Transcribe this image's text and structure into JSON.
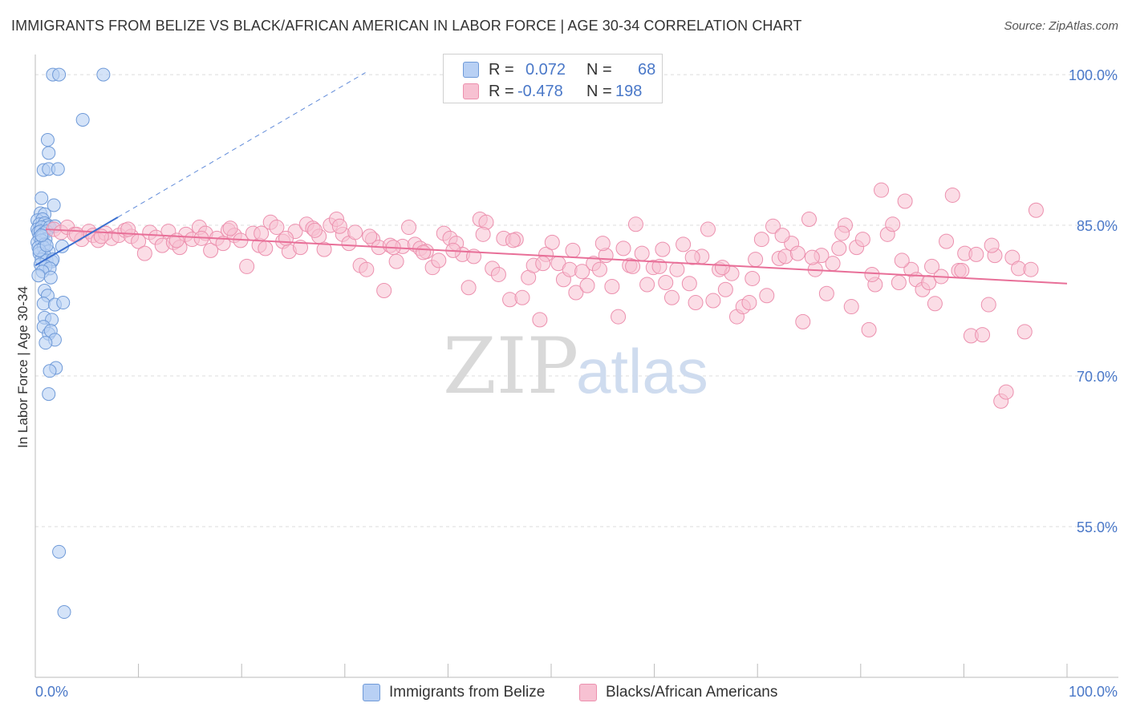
{
  "header": {
    "title": "IMMIGRANTS FROM BELIZE VS BLACK/AFRICAN AMERICAN IN LABOR FORCE | AGE 30-34 CORRELATION CHART",
    "source": "Source: ZipAtlas.com"
  },
  "watermark": {
    "zip": "ZIP",
    "atlas": "atlas"
  },
  "legend": {
    "rows": [
      {
        "r_label": "R =",
        "r_value": "0.072",
        "n_label": "N =",
        "n_value": "68"
      },
      {
        "r_label": "R =",
        "r_value": "-0.478",
        "n_label": "N =",
        "n_value": "198"
      }
    ]
  },
  "bottom_legend": {
    "items": [
      {
        "label": "Immigrants from Belize"
      },
      {
        "label": "Blacks/African Americans"
      }
    ]
  },
  "colors": {
    "blue_fill": "#b8d0f4",
    "blue_stroke": "#6f9ad8",
    "blue_line": "#3a6fd0",
    "pink_fill": "#f7c1d2",
    "pink_stroke": "#ec90ae",
    "pink_line": "#e86f98",
    "grid": "#dddddd",
    "tick_text": "#4a78c8"
  },
  "chart_data": {
    "type": "scatter",
    "title": "IMMIGRANTS FROM BELIZE VS BLACK/AFRICAN AMERICAN IN LABOR FORCE | AGE 30-34 CORRELATION CHART",
    "xlabel": "",
    "ylabel": "In Labor Force | Age 30-34",
    "xlim": [
      0,
      100
    ],
    "ylim": [
      40,
      102
    ],
    "x_tick_labels": [
      "0.0%",
      "100.0%"
    ],
    "y_ticks": [
      55,
      70,
      85,
      100
    ],
    "y_tick_labels": [
      "55.0%",
      "70.0%",
      "85.0%",
      "100.0%"
    ],
    "grid": true,
    "legend_position": "top-center",
    "series": [
      {
        "name": "Immigrants from Belize",
        "R": 0.072,
        "N": 68,
        "trend": {
          "x0": 0.0,
          "y0": 81.0,
          "x1": 8.0,
          "y1": 85.8,
          "dashed_to": {
            "x": 32.0,
            "y": 100.2
          }
        },
        "points": [
          [
            1.7,
            100.0
          ],
          [
            2.3,
            100.0
          ],
          [
            6.6,
            100.0
          ],
          [
            4.6,
            95.5
          ],
          [
            1.2,
            93.5
          ],
          [
            1.3,
            92.2
          ],
          [
            0.8,
            90.5
          ],
          [
            1.3,
            90.6
          ],
          [
            2.2,
            90.6
          ],
          [
            0.6,
            87.7
          ],
          [
            1.8,
            87.0
          ],
          [
            0.5,
            86.2
          ],
          [
            0.9,
            86.1
          ],
          [
            0.2,
            85.5
          ],
          [
            0.7,
            85.6
          ],
          [
            0.4,
            85.1
          ],
          [
            0.9,
            85.2
          ],
          [
            1.2,
            85.0
          ],
          [
            0.2,
            84.6
          ],
          [
            0.6,
            84.8
          ],
          [
            1.4,
            84.8
          ],
          [
            0.3,
            84.3
          ],
          [
            0.5,
            84.4
          ],
          [
            0.8,
            84.2
          ],
          [
            1.1,
            84.4
          ],
          [
            0.4,
            83.8
          ],
          [
            0.7,
            83.9
          ],
          [
            1.0,
            83.6
          ],
          [
            0.2,
            83.3
          ],
          [
            0.6,
            83.5
          ],
          [
            0.9,
            83.1
          ],
          [
            0.3,
            82.8
          ],
          [
            0.8,
            82.8
          ],
          [
            2.6,
            82.9
          ],
          [
            1.3,
            82.4
          ],
          [
            0.4,
            82.2
          ],
          [
            0.9,
            82.0
          ],
          [
            0.6,
            81.6
          ],
          [
            1.1,
            81.5
          ],
          [
            1.6,
            81.4
          ],
          [
            1.7,
            81.6
          ],
          [
            0.5,
            81.1
          ],
          [
            1.0,
            80.9
          ],
          [
            1.4,
            80.7
          ],
          [
            0.7,
            80.4
          ],
          [
            0.3,
            80.0
          ],
          [
            1.5,
            79.8
          ],
          [
            0.9,
            78.5
          ],
          [
            1.2,
            78.0
          ],
          [
            0.8,
            77.2
          ],
          [
            1.9,
            77.1
          ],
          [
            2.7,
            77.3
          ],
          [
            0.9,
            75.8
          ],
          [
            1.6,
            75.6
          ],
          [
            0.8,
            74.9
          ],
          [
            1.3,
            74.2
          ],
          [
            1.5,
            74.5
          ],
          [
            1.9,
            73.6
          ],
          [
            1.0,
            73.3
          ],
          [
            2.0,
            70.8
          ],
          [
            1.4,
            70.5
          ],
          [
            1.3,
            68.2
          ],
          [
            2.3,
            52.5
          ],
          [
            2.8,
            46.5
          ],
          [
            0.4,
            82.5
          ],
          [
            1.1,
            83.0
          ],
          [
            0.6,
            84.0
          ],
          [
            1.9,
            84.9
          ]
        ]
      },
      {
        "name": "Blacks/African Americans",
        "R": -0.478,
        "N": 198,
        "trend": {
          "x0": 1.0,
          "y0": 84.6,
          "x1": 100.0,
          "y1": 79.2
        },
        "points": [
          [
            1.8,
            84.6
          ],
          [
            2.5,
            84.3
          ],
          [
            3.1,
            84.8
          ],
          [
            3.8,
            84.1
          ],
          [
            4.5,
            83.6
          ],
          [
            5.2,
            84.4
          ],
          [
            5.6,
            84.0
          ],
          [
            6.1,
            83.5
          ],
          [
            6.8,
            84.2
          ],
          [
            7.4,
            83.7
          ],
          [
            8.1,
            84.0
          ],
          [
            8.7,
            84.5
          ],
          [
            9.3,
            83.9
          ],
          [
            10.0,
            83.4
          ],
          [
            10.6,
            82.2
          ],
          [
            11.1,
            84.3
          ],
          [
            11.7,
            83.8
          ],
          [
            12.3,
            83.0
          ],
          [
            12.9,
            84.4
          ],
          [
            13.4,
            83.3
          ],
          [
            14.0,
            82.8
          ],
          [
            14.6,
            84.1
          ],
          [
            15.2,
            83.6
          ],
          [
            15.9,
            84.8
          ],
          [
            16.5,
            84.2
          ],
          [
            17.0,
            82.5
          ],
          [
            17.6,
            83.7
          ],
          [
            18.2,
            83.2
          ],
          [
            18.7,
            84.5
          ],
          [
            19.3,
            84.0
          ],
          [
            19.9,
            83.5
          ],
          [
            20.5,
            80.9
          ],
          [
            21.1,
            84.2
          ],
          [
            21.7,
            83.0
          ],
          [
            22.3,
            82.7
          ],
          [
            22.8,
            85.3
          ],
          [
            23.4,
            84.8
          ],
          [
            24.0,
            83.4
          ],
          [
            24.6,
            82.4
          ],
          [
            25.2,
            84.4
          ],
          [
            25.7,
            82.8
          ],
          [
            26.3,
            85.1
          ],
          [
            26.9,
            84.7
          ],
          [
            27.5,
            83.9
          ],
          [
            28.0,
            82.6
          ],
          [
            28.6,
            85.0
          ],
          [
            29.2,
            85.6
          ],
          [
            29.8,
            84.1
          ],
          [
            30.4,
            83.2
          ],
          [
            31.0,
            84.3
          ],
          [
            31.5,
            81.0
          ],
          [
            32.1,
            80.6
          ],
          [
            32.7,
            83.6
          ],
          [
            33.3,
            82.8
          ],
          [
            33.8,
            78.5
          ],
          [
            34.4,
            83.0
          ],
          [
            35.0,
            81.4
          ],
          [
            35.6,
            82.9
          ],
          [
            36.2,
            84.8
          ],
          [
            36.8,
            83.1
          ],
          [
            37.3,
            82.7
          ],
          [
            37.9,
            82.4
          ],
          [
            38.5,
            80.8
          ],
          [
            39.1,
            81.5
          ],
          [
            39.6,
            84.2
          ],
          [
            40.2,
            83.7
          ],
          [
            40.8,
            83.2
          ],
          [
            41.4,
            82.1
          ],
          [
            42.0,
            78.8
          ],
          [
            42.5,
            81.9
          ],
          [
            43.1,
            85.6
          ],
          [
            43.7,
            85.3
          ],
          [
            44.3,
            80.7
          ],
          [
            44.9,
            80.1
          ],
          [
            45.4,
            83.7
          ],
          [
            46.0,
            77.6
          ],
          [
            46.6,
            83.6
          ],
          [
            47.2,
            77.8
          ],
          [
            47.8,
            79.8
          ],
          [
            48.3,
            81.0
          ],
          [
            48.9,
            75.6
          ],
          [
            49.5,
            82.1
          ],
          [
            50.1,
            83.3
          ],
          [
            50.7,
            81.2
          ],
          [
            51.2,
            79.6
          ],
          [
            51.8,
            80.6
          ],
          [
            52.4,
            78.3
          ],
          [
            53.0,
            80.4
          ],
          [
            53.5,
            79.0
          ],
          [
            54.1,
            81.2
          ],
          [
            54.7,
            80.6
          ],
          [
            55.3,
            82.0
          ],
          [
            55.9,
            78.9
          ],
          [
            56.5,
            75.9
          ],
          [
            57.0,
            82.7
          ],
          [
            57.6,
            81.0
          ],
          [
            58.2,
            85.1
          ],
          [
            58.8,
            82.2
          ],
          [
            59.3,
            79.1
          ],
          [
            59.9,
            80.8
          ],
          [
            60.5,
            80.9
          ],
          [
            61.1,
            79.3
          ],
          [
            61.7,
            77.8
          ],
          [
            62.2,
            80.6
          ],
          [
            62.8,
            83.1
          ],
          [
            63.4,
            79.2
          ],
          [
            64.0,
            77.3
          ],
          [
            64.6,
            81.9
          ],
          [
            65.2,
            84.6
          ],
          [
            65.7,
            77.5
          ],
          [
            66.3,
            80.6
          ],
          [
            66.9,
            78.6
          ],
          [
            67.5,
            80.2
          ],
          [
            68.0,
            75.9
          ],
          [
            68.6,
            76.9
          ],
          [
            69.2,
            77.3
          ],
          [
            69.8,
            81.6
          ],
          [
            70.4,
            83.6
          ],
          [
            70.9,
            78.0
          ],
          [
            71.5,
            84.9
          ],
          [
            72.1,
            81.7
          ],
          [
            72.7,
            81.9
          ],
          [
            73.3,
            83.2
          ],
          [
            73.9,
            82.2
          ],
          [
            74.4,
            75.4
          ],
          [
            75.0,
            85.6
          ],
          [
            75.6,
            80.6
          ],
          [
            76.2,
            82.0
          ],
          [
            76.7,
            78.2
          ],
          [
            77.3,
            81.2
          ],
          [
            77.9,
            82.7
          ],
          [
            78.5,
            85.0
          ],
          [
            79.1,
            76.9
          ],
          [
            79.6,
            82.8
          ],
          [
            80.2,
            83.6
          ],
          [
            80.8,
            74.6
          ],
          [
            81.4,
            79.1
          ],
          [
            82.0,
            88.5
          ],
          [
            82.6,
            84.1
          ],
          [
            83.1,
            85.1
          ],
          [
            83.7,
            79.3
          ],
          [
            84.3,
            87.4
          ],
          [
            84.9,
            80.6
          ],
          [
            85.4,
            79.6
          ],
          [
            86.0,
            78.6
          ],
          [
            86.6,
            79.3
          ],
          [
            87.2,
            77.2
          ],
          [
            87.8,
            79.9
          ],
          [
            88.3,
            83.4
          ],
          [
            88.9,
            88.0
          ],
          [
            89.5,
            80.5
          ],
          [
            90.1,
            82.2
          ],
          [
            90.7,
            74.0
          ],
          [
            91.2,
            82.1
          ],
          [
            91.8,
            74.1
          ],
          [
            92.4,
            77.1
          ],
          [
            93.0,
            82.0
          ],
          [
            93.6,
            67.5
          ],
          [
            94.1,
            68.4
          ],
          [
            94.7,
            81.8
          ],
          [
            95.3,
            80.7
          ],
          [
            95.9,
            74.4
          ],
          [
            96.5,
            80.6
          ],
          [
            97.0,
            86.5
          ],
          [
            4.0,
            84.1
          ],
          [
            6.4,
            83.9
          ],
          [
            9.0,
            84.6
          ],
          [
            13.7,
            83.5
          ],
          [
            16.1,
            83.7
          ],
          [
            18.9,
            84.7
          ],
          [
            21.9,
            84.2
          ],
          [
            24.3,
            83.7
          ],
          [
            27.1,
            84.5
          ],
          [
            29.5,
            84.9
          ],
          [
            32.4,
            83.9
          ],
          [
            34.7,
            82.8
          ],
          [
            37.6,
            82.3
          ],
          [
            40.5,
            82.5
          ],
          [
            43.4,
            84.1
          ],
          [
            46.3,
            83.5
          ],
          [
            49.2,
            81.2
          ],
          [
            52.1,
            82.5
          ],
          [
            55.0,
            83.2
          ],
          [
            57.9,
            80.9
          ],
          [
            60.8,
            82.6
          ],
          [
            63.7,
            81.8
          ],
          [
            66.6,
            80.8
          ],
          [
            69.5,
            79.7
          ],
          [
            72.4,
            84.0
          ],
          [
            75.3,
            81.8
          ],
          [
            78.2,
            84.2
          ],
          [
            81.1,
            80.1
          ],
          [
            84.0,
            81.5
          ],
          [
            86.9,
            80.9
          ],
          [
            89.8,
            80.5
          ],
          [
            92.7,
            83.0
          ]
        ]
      }
    ]
  }
}
